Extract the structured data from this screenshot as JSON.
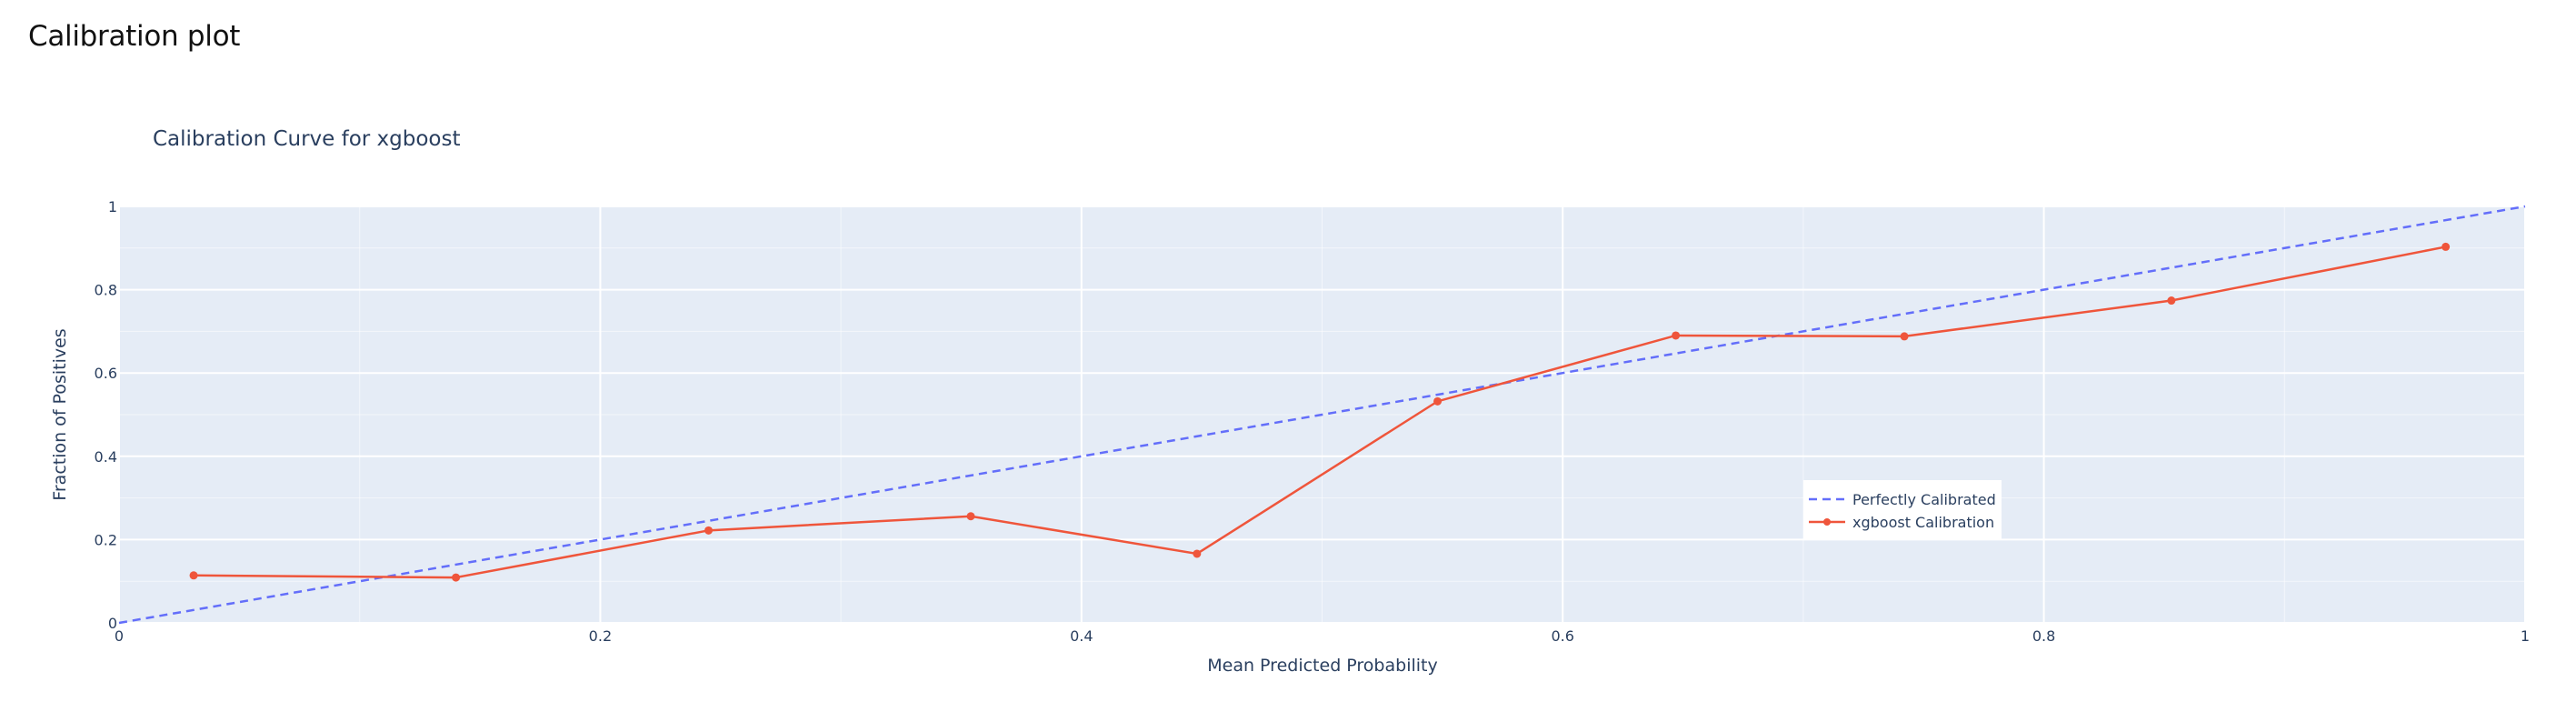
{
  "page": {
    "heading": "Calibration plot"
  },
  "chart_data": {
    "type": "line",
    "title": "Calibration Curve for xgboost",
    "xlabel": "Mean Predicted Probability",
    "ylabel": "Fraction of Positives",
    "xlim": [
      0,
      1
    ],
    "ylim": [
      0,
      1
    ],
    "xticks": [
      0,
      0.2,
      0.4,
      0.6,
      0.8,
      1
    ],
    "xtick_labels": [
      "0",
      "0.2",
      "0.4",
      "0.6",
      "0.8",
      "1"
    ],
    "yticks": [
      0,
      0.2,
      0.4,
      0.6,
      0.8,
      1
    ],
    "ytick_labels": [
      "0",
      "0.2",
      "0.4",
      "0.6",
      "0.8",
      "1"
    ],
    "grid": true,
    "legend_position": "bottom-right",
    "background_color": "#e5ecf6",
    "series": [
      {
        "name": "Perfectly Calibrated",
        "style": "dashed",
        "markers": false,
        "color": "#636efa",
        "x": [
          0,
          1
        ],
        "y": [
          0,
          1
        ]
      },
      {
        "name": "xgboost Calibration",
        "style": "solid",
        "markers": true,
        "color": "#ef553b",
        "x": [
          0.031,
          0.14,
          0.245,
          0.354,
          0.448,
          0.548,
          0.647,
          0.742,
          0.853,
          0.967
        ],
        "y": [
          0.114,
          0.109,
          0.222,
          0.256,
          0.166,
          0.532,
          0.69,
          0.688,
          0.774,
          0.903
        ]
      }
    ]
  }
}
